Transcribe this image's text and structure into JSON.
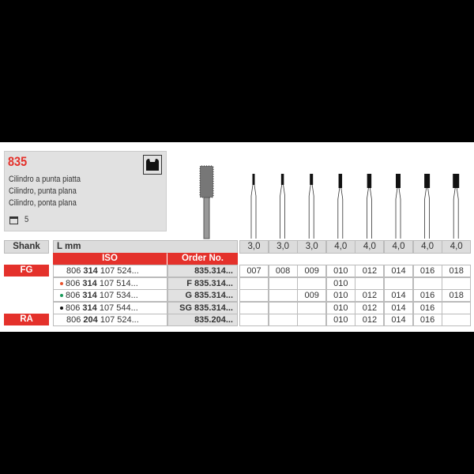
{
  "product": {
    "code": "835",
    "descriptions": [
      "Cilindro a punta piatta",
      "Cilindro, punta plana",
      "Cilindro, ponta plana"
    ],
    "pack_quantity": "5",
    "pack_icon": "package-icon",
    "shank_icon": "fg-shank-icon"
  },
  "table": {
    "shank_header": "Shank",
    "length_header": "L mm",
    "iso_header": "ISO",
    "order_header": "Order No.",
    "lengths": [
      "3,0",
      "3,0",
      "3,0",
      "4,0",
      "4,0",
      "4,0",
      "4,0",
      "4,0"
    ],
    "shank_labels": {
      "fg": "FG",
      "ra": "RA"
    },
    "rows": [
      {
        "shank": "FG",
        "dot": "",
        "iso_a": "806 ",
        "iso_b": "314",
        "iso_c": " 107 524...",
        "order": "835.314...",
        "sizes": [
          "007",
          "008",
          "009",
          "010",
          "012",
          "014",
          "016",
          "018"
        ]
      },
      {
        "shank": "",
        "dot": "#e8542f",
        "iso_a": "806 ",
        "iso_b": "314",
        "iso_c": " 107 514...",
        "order": "F 835.314...",
        "sizes": [
          "",
          "",
          "",
          "010",
          "",
          "",
          "",
          ""
        ]
      },
      {
        "shank": "",
        "dot": "#1a9a5a",
        "iso_a": "806 ",
        "iso_b": "314",
        "iso_c": " 107 534...",
        "order": "G 835.314...",
        "sizes": [
          "",
          "",
          "009",
          "010",
          "012",
          "014",
          "016",
          "018"
        ]
      },
      {
        "shank": "",
        "dot": "#111111",
        "iso_a": "806 ",
        "iso_b": "314",
        "iso_c": " 107 544...",
        "order": "SG 835.314...",
        "sizes": [
          "",
          "",
          "",
          "010",
          "012",
          "014",
          "016",
          ""
        ]
      },
      {
        "shank": "RA",
        "dot": "",
        "iso_a": "806 ",
        "iso_b": "204",
        "iso_c": " 107 524...",
        "order": "835.204...",
        "sizes": [
          "",
          "",
          "",
          "010",
          "012",
          "014",
          "016",
          ""
        ]
      }
    ]
  },
  "colors": {
    "accent": "#e4312b",
    "header_gray": "#dcdcdc"
  }
}
